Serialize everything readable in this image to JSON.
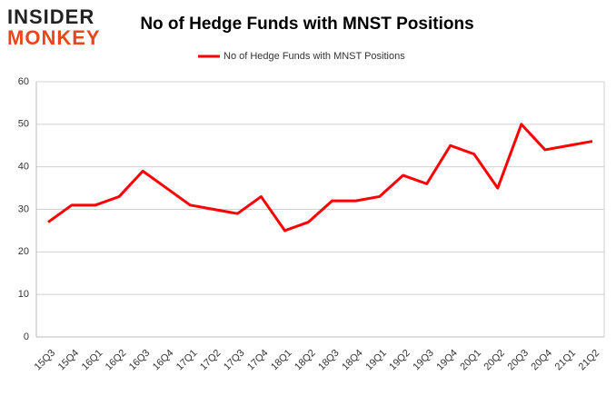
{
  "logo": {
    "line1": "INSIDER",
    "line2": "MONKEY"
  },
  "chart_data": {
    "type": "line",
    "title": "No of Hedge Funds with MNST Positions",
    "categories": [
      "15Q3",
      "15Q4",
      "16Q1",
      "16Q2",
      "16Q3",
      "16Q4",
      "17Q1",
      "17Q2",
      "17Q3",
      "17Q4",
      "18Q1",
      "18Q2",
      "18Q3",
      "18Q4",
      "19Q1",
      "19Q2",
      "19Q3",
      "19Q4",
      "20Q1",
      "20Q2",
      "20Q3",
      "20Q4",
      "21Q1",
      "21Q2"
    ],
    "series": [
      {
        "name": "No of Hedge Funds with MNST Positions",
        "color": "#ff0000",
        "values": [
          27,
          31,
          31,
          33,
          39,
          35,
          31,
          30,
          29,
          33,
          25,
          27,
          32,
          32,
          33,
          38,
          36,
          45,
          43,
          35,
          50,
          44,
          45,
          46
        ]
      }
    ],
    "ylim": [
      0,
      60
    ],
    "yticks": [
      0,
      10,
      20,
      30,
      40,
      50,
      60
    ],
    "grid": true,
    "legend": "top"
  }
}
